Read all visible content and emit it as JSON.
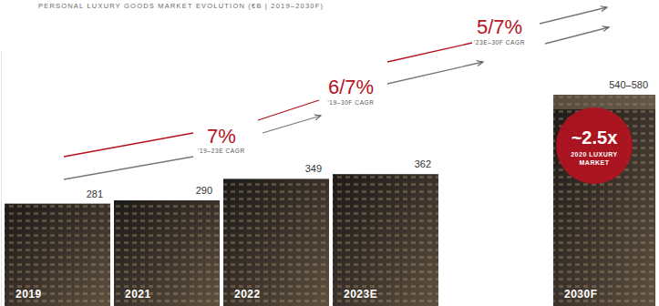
{
  "chart_data": {
    "type": "bar",
    "title": "PERSONAL LUXURY GOODS MARKET EVOLUTION (€B | 2019–2030F)",
    "categories": [
      "2019",
      "2021",
      "2022",
      "2023E",
      "2030F"
    ],
    "values": [
      281,
      290,
      349,
      362,
      580
    ],
    "lower_values": [
      null,
      null,
      null,
      null,
      540
    ],
    "value_labels": [
      "281",
      "290",
      "349",
      "362",
      "540–580"
    ],
    "ylim": [
      0,
      700
    ],
    "tick_labels": false,
    "data_labels": true,
    "color": "#3a322b",
    "annotations": [
      {
        "text": "7%",
        "subtitle": "'19–23E CAGR"
      },
      {
        "text": "6/7%",
        "subtitle": "'19–30F CAGR"
      },
      {
        "text": "5/7%",
        "subtitle": "'23E–30F CAGR"
      }
    ],
    "callout": {
      "text": "~2.5x",
      "subtitle": "2020 LUXURY MARKET",
      "color": "#b3121f"
    }
  }
}
